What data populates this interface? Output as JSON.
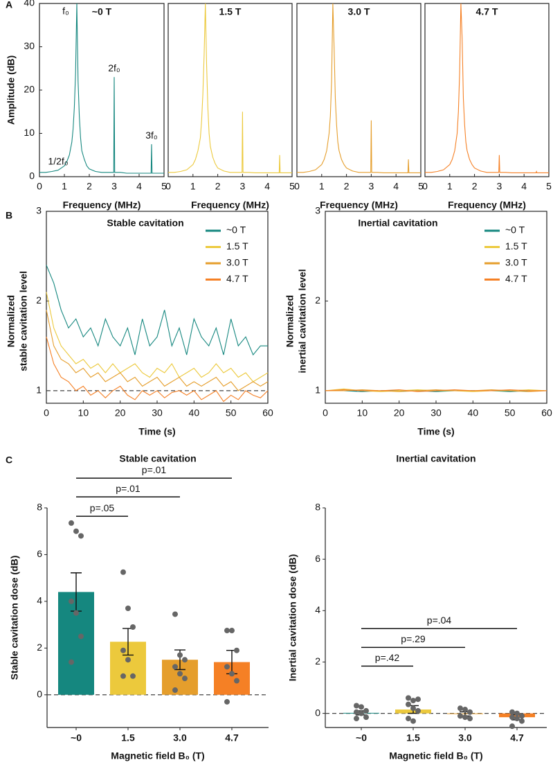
{
  "chart_data": [
    {
      "type": "line",
      "panel_label": "A",
      "title": "~0 T",
      "color": "#15877f",
      "box": true,
      "x": [
        0,
        0.25,
        0.5,
        0.75,
        1.0,
        1.1,
        1.2,
        1.3,
        1.35,
        1.4,
        1.45,
        1.5,
        1.55,
        1.6,
        1.65,
        1.7,
        1.8,
        1.9,
        2.0,
        2.25,
        2.5,
        2.75,
        2.98,
        3.0,
        3.02,
        3.25,
        3.5,
        3.75,
        4.0,
        4.25,
        4.48,
        4.5,
        4.52,
        4.75,
        5.0
      ],
      "values": [
        1,
        1,
        1.2,
        1.5,
        2.5,
        3.5,
        5,
        8,
        11,
        16,
        24,
        40,
        22,
        14,
        9,
        6,
        4,
        2.5,
        1.8,
        1.2,
        1,
        1,
        1,
        23,
        1,
        1,
        0.8,
        0.8,
        0.8,
        0.8,
        0.8,
        7.5,
        0.8,
        0.8,
        0.8
      ],
      "xlim": [
        0,
        5
      ],
      "ylim": [
        0,
        40
      ],
      "xticks": [
        0,
        1,
        2,
        3,
        4,
        5
      ],
      "yticks": [
        0,
        10,
        20,
        30,
        40
      ],
      "xlabel": "Frequency (MHz)",
      "ylabel": "Amplitude (dB)",
      "annotations": [
        {
          "text": "f₀",
          "x": 1.5
        },
        {
          "text": "2f₀",
          "x": 3.0
        },
        {
          "text": "3f₀",
          "x": 4.5
        },
        {
          "text": "1/2f₀",
          "x": 0.75
        }
      ]
    },
    {
      "type": "line",
      "title": "1.5 T",
      "color": "#ecc93c",
      "box": true,
      "x": [
        0,
        0.25,
        0.5,
        0.75,
        1.0,
        1.1,
        1.2,
        1.3,
        1.35,
        1.4,
        1.45,
        1.5,
        1.55,
        1.6,
        1.65,
        1.7,
        1.8,
        1.9,
        2.0,
        2.25,
        2.5,
        2.75,
        2.98,
        3.0,
        3.02,
        3.25,
        3.5,
        3.75,
        4.0,
        4.25,
        4.48,
        4.5,
        4.52,
        4.75,
        5.0
      ],
      "values": [
        1,
        1,
        1.2,
        1.6,
        2.8,
        4,
        6,
        9,
        13,
        19,
        28,
        40,
        26,
        16,
        10,
        7,
        4.5,
        3,
        2,
        1.3,
        1,
        1,
        1,
        15,
        1,
        1,
        0.9,
        0.9,
        0.9,
        0.9,
        0.9,
        5,
        0.9,
        0.9,
        0.9
      ],
      "xlim": [
        0,
        5
      ],
      "ylim": [
        0,
        40
      ],
      "xticks": [
        0,
        1,
        2,
        3,
        4,
        5
      ],
      "xlabel": "Frequency (MHz)"
    },
    {
      "type": "line",
      "title": "3.0 T",
      "color": "#e59e2c",
      "box": true,
      "x": [
        0,
        0.25,
        0.5,
        0.75,
        1.0,
        1.1,
        1.2,
        1.3,
        1.35,
        1.4,
        1.45,
        1.5,
        1.55,
        1.6,
        1.65,
        1.7,
        1.8,
        1.9,
        2.0,
        2.25,
        2.5,
        2.75,
        2.98,
        3.0,
        3.02,
        3.25,
        3.5,
        3.75,
        4.0,
        4.25,
        4.48,
        4.5,
        4.52,
        4.75,
        5.0
      ],
      "values": [
        1,
        1,
        1.2,
        1.6,
        2.8,
        4,
        6,
        10,
        14,
        22,
        40,
        30,
        18,
        12,
        8,
        6,
        4,
        2.8,
        2,
        1.3,
        1,
        1,
        1,
        13,
        1,
        1,
        0.9,
        0.9,
        0.9,
        0.9,
        0.9,
        4,
        0.9,
        0.9,
        0.9
      ],
      "xlim": [
        0,
        5
      ],
      "ylim": [
        0,
        40
      ],
      "xticks": [
        0,
        1,
        2,
        3,
        4,
        5
      ],
      "xlabel": "Frequency (MHz)"
    },
    {
      "type": "line",
      "title": "4.7 T",
      "color": "#f58025",
      "box": true,
      "x": [
        0,
        0.25,
        0.5,
        0.75,
        1.0,
        1.1,
        1.2,
        1.3,
        1.35,
        1.4,
        1.45,
        1.5,
        1.55,
        1.6,
        1.65,
        1.7,
        1.8,
        1.9,
        2.0,
        2.25,
        2.5,
        2.75,
        2.98,
        3.0,
        3.02,
        3.25,
        3.5,
        3.75,
        4.0,
        4.25,
        4.48,
        4.5,
        4.52,
        4.75,
        5.0
      ],
      "values": [
        1,
        1,
        1.2,
        1.6,
        2.8,
        4,
        6,
        10,
        15,
        24,
        40,
        32,
        18,
        12,
        8,
        6,
        4,
        2.8,
        2,
        1.3,
        1,
        1,
        1,
        5,
        1,
        1,
        0.9,
        0.9,
        0.9,
        0.9,
        0.9,
        1.2,
        0.9,
        0.9,
        0.9
      ],
      "xlim": [
        0,
        5
      ],
      "ylim": [
        0,
        40
      ],
      "xticks": [
        0,
        1,
        2,
        3,
        4,
        5
      ],
      "xlabel": "Frequency (MHz)"
    },
    {
      "type": "line",
      "panel_label": "B",
      "title": "Stable cavitation",
      "box": true,
      "reference_line": 1,
      "legend": "upper right",
      "x": [
        0,
        2,
        4,
        6,
        8,
        10,
        12,
        14,
        16,
        18,
        20,
        22,
        24,
        26,
        28,
        30,
        32,
        34,
        36,
        38,
        40,
        42,
        44,
        46,
        48,
        50,
        52,
        54,
        56,
        58,
        60
      ],
      "series": [
        {
          "name": "~0 T",
          "color": "#15877f",
          "values": [
            2.4,
            2.2,
            1.9,
            1.7,
            1.8,
            1.6,
            1.7,
            1.5,
            1.8,
            1.6,
            1.5,
            1.7,
            1.4,
            1.8,
            1.5,
            1.6,
            1.9,
            1.5,
            1.7,
            1.4,
            1.8,
            1.6,
            1.5,
            1.7,
            1.4,
            1.8,
            1.5,
            1.6,
            1.4,
            1.5,
            1.5
          ]
        },
        {
          "name": "1.5 T",
          "color": "#ecc93c",
          "values": [
            2.1,
            1.7,
            1.5,
            1.4,
            1.3,
            1.35,
            1.25,
            1.3,
            1.2,
            1.3,
            1.2,
            1.25,
            1.3,
            1.2,
            1.15,
            1.25,
            1.2,
            1.3,
            1.15,
            1.2,
            1.25,
            1.15,
            1.2,
            1.3,
            1.2,
            1.25,
            1.15,
            1.2,
            1.1,
            1.15,
            1.2
          ]
        },
        {
          "name": "3.0 T",
          "color": "#e59e2c",
          "values": [
            1.9,
            1.5,
            1.35,
            1.3,
            1.2,
            1.25,
            1.15,
            1.2,
            1.1,
            1.15,
            1.2,
            1.1,
            1.15,
            1.05,
            1.1,
            1.15,
            1.05,
            1.1,
            1.15,
            1.05,
            1.1,
            1.05,
            1.1,
            1.15,
            1.05,
            1.1,
            1.0,
            1.05,
            1.1,
            1.05,
            1.1
          ]
        },
        {
          "name": "4.7 T",
          "color": "#f58025",
          "values": [
            1.6,
            1.3,
            1.15,
            1.1,
            1.0,
            1.05,
            0.95,
            1.0,
            0.92,
            1.0,
            1.05,
            0.95,
            0.9,
            1.0,
            0.95,
            1.0,
            0.92,
            0.98,
            1.0,
            0.95,
            1.0,
            0.9,
            0.95,
            1.0,
            0.88,
            0.95,
            0.9,
            1.0,
            0.95,
            0.92,
            1.0
          ]
        }
      ],
      "xlim": [
        0,
        60
      ],
      "ylim": [
        0.86,
        3
      ],
      "xticks": [
        0,
        10,
        20,
        30,
        40,
        50,
        60
      ],
      "yticks": [
        1,
        2,
        3
      ],
      "xlabel": "Time (s)",
      "ylabel": [
        "Normalized",
        "stable cavitation level"
      ]
    },
    {
      "type": "line",
      "title": "Inertial cavitation",
      "box": true,
      "reference_line": 1,
      "legend": "upper right",
      "x": [
        0,
        5,
        10,
        15,
        20,
        25,
        30,
        35,
        40,
        45,
        50,
        55,
        60
      ],
      "series": [
        {
          "name": "~0 T",
          "color": "#15877f",
          "values": [
            1.0,
            1.0,
            0.99,
            1.0,
            1.0,
            1.0,
            0.99,
            1.0,
            1.0,
            1.0,
            0.99,
            1.0,
            1.0
          ]
        },
        {
          "name": "1.5 T",
          "color": "#ecc93c",
          "values": [
            1.0,
            1.02,
            1.0,
            0.99,
            1.0,
            1.01,
            1.0,
            1.0,
            0.99,
            1.0,
            1.0,
            1.01,
            1.0
          ]
        },
        {
          "name": "3.0 T",
          "color": "#e59e2c",
          "values": [
            1.0,
            1.0,
            1.01,
            1.0,
            0.99,
            1.0,
            1.01,
            1.0,
            1.0,
            1.01,
            1.0,
            0.99,
            1.0
          ]
        },
        {
          "name": "4.7 T",
          "color": "#f58025",
          "values": [
            1.0,
            1.01,
            1.0,
            1.0,
            1.01,
            0.99,
            1.0,
            1.01,
            1.0,
            1.0,
            1.01,
            1.0,
            1.0
          ]
        }
      ],
      "xlim": [
        0,
        60
      ],
      "ylim": [
        0.86,
        3
      ],
      "xticks": [
        0,
        10,
        20,
        30,
        40,
        50,
        60
      ],
      "yticks": [
        1,
        2,
        3
      ],
      "xlabel": "Time (s)",
      "ylabel": [
        "Normalized",
        "inertial cavitation level"
      ]
    },
    {
      "type": "bar",
      "panel_label": "C",
      "title": "Stable cavitation",
      "categories": [
        "~0",
        "1.5",
        "3.0",
        "4.7"
      ],
      "values": [
        4.4,
        2.27,
        1.5,
        1.4
      ],
      "errors": [
        0.82,
        0.57,
        0.42,
        0.5
      ],
      "colors": [
        "#15877f",
        "#ecc93c",
        "#e59e2c",
        "#f58025"
      ],
      "points": [
        [
          7.35,
          7.0,
          6.8,
          4.0,
          3.5,
          2.5,
          1.4
        ],
        [
          5.25,
          3.7,
          2.9,
          1.9,
          1.5,
          0.8,
          0.8
        ],
        [
          3.45,
          1.7,
          1.5,
          1.2,
          0.9,
          0.7,
          0.2
        ],
        [
          2.75,
          2.75,
          1.9,
          1.2,
          0.9,
          0.6,
          -0.3
        ]
      ],
      "brackets": [
        {
          "from": "~0",
          "to": "1.5",
          "y": 7.64,
          "label": "p=.05"
        },
        {
          "from": "~0",
          "to": "3.0",
          "y": 8.47,
          "label": "p=.01"
        },
        {
          "from": "~0",
          "to": "4.7",
          "y": 9.27,
          "label": "p=.01"
        }
      ],
      "ylim": [
        -1.4,
        8
      ],
      "yticks": [
        0,
        2,
        4,
        6,
        8
      ],
      "xlabel": "Magnetic field B₀ (T)",
      "ylabel": "Stable cavitation dose (dB)"
    },
    {
      "type": "bar",
      "title": "Inertial cavitation",
      "categories": [
        "~0",
        "1.5",
        "3.0",
        "4.7"
      ],
      "values": [
        0.02,
        0.15,
        -0.02,
        -0.15
      ],
      "errors": [
        0.08,
        0.15,
        0.08,
        0.1
      ],
      "colors": [
        "#15877f",
        "#ecc93c",
        "#e59e2c",
        "#f58025"
      ],
      "points": [
        [
          0.3,
          0.25,
          0.1,
          0.05,
          0,
          -0.15,
          -0.2
        ],
        [
          0.6,
          0.5,
          0.55,
          0.35,
          0.2,
          0.1,
          -0.2,
          -0.3
        ],
        [
          0.2,
          0.15,
          0.05,
          -0.1,
          -0.15,
          -0.2
        ],
        [
          0.05,
          0.0,
          -0.1,
          -0.15,
          -0.2,
          -0.3,
          -0.5
        ]
      ],
      "brackets": [
        {
          "from": "~0",
          "to": "1.5",
          "y": 1.84,
          "label": "p=.42"
        },
        {
          "from": "~0",
          "to": "3.0",
          "y": 2.57,
          "label": "p=.29"
        },
        {
          "from": "~0",
          "to": "4.7",
          "y": 3.3,
          "label": "p=.04"
        }
      ],
      "ylim": [
        -0.55,
        8
      ],
      "yticks": [
        0,
        2,
        4,
        6,
        8
      ],
      "xlabel": "Magnetic field B₀ (T)",
      "ylabel": "Inertial cavitation dose (dB)"
    }
  ]
}
